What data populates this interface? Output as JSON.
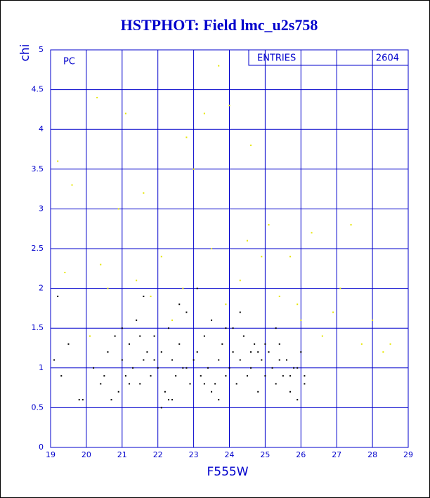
{
  "chart_data": {
    "type": "scatter",
    "title": "HSTPHOT: Field lmc_u2s758",
    "xlabel": "F555W",
    "ylabel": "chi",
    "panel_label": "PC",
    "stats": {
      "label": "ENTRIES",
      "value": "2604"
    },
    "xlim": [
      19,
      29
    ],
    "ylim": [
      0,
      5
    ],
    "xticks": [
      19,
      20,
      21,
      22,
      23,
      24,
      25,
      26,
      27,
      28,
      29
    ],
    "yticks": [
      0,
      0.5,
      1,
      1.5,
      2,
      2.5,
      3,
      3.5,
      4,
      4.5,
      5
    ],
    "grid": true,
    "grid_color": "#0000cc",
    "axis_color": "#0000cc",
    "series": [
      {
        "color": "#000000",
        "x": [
          19.1,
          19.3,
          19.5,
          19.8,
          20.2,
          20.4,
          20.6,
          20.8,
          20.9,
          21.0,
          21.1,
          21.2,
          21.3,
          21.4,
          21.5,
          21.6,
          21.7,
          21.8,
          21.9,
          22.0,
          22.1,
          22.2,
          22.3,
          22.4,
          22.5,
          22.6,
          22.7,
          22.8,
          22.9,
          23.0,
          23.1,
          23.2,
          23.3,
          23.4,
          23.5,
          23.6,
          23.7,
          23.8,
          23.9,
          24.0,
          24.1,
          24.2,
          24.3,
          24.4,
          24.5,
          24.6,
          24.7,
          24.8,
          24.9,
          25.0,
          25.1,
          25.2,
          25.3,
          25.4,
          25.5,
          25.6,
          25.7,
          25.8,
          25.9,
          26.0,
          20.7,
          21.2,
          21.6,
          22.1,
          22.6,
          23.1,
          23.5,
          23.9,
          24.3,
          24.8,
          25.3,
          25.7,
          26.1,
          21.5,
          22.4,
          23.3,
          24.1,
          25.0,
          25.9,
          20.5,
          21.9,
          22.8,
          23.7,
          24.6,
          25.4,
          19.2,
          19.9,
          21.0,
          22.3,
          26.1
        ],
        "values": [
          1.1,
          0.9,
          1.3,
          0.6,
          1.0,
          0.8,
          1.2,
          1.4,
          0.7,
          1.1,
          0.9,
          1.3,
          1.0,
          1.6,
          0.8,
          1.1,
          1.2,
          0.9,
          1.4,
          1.0,
          1.2,
          0.7,
          1.5,
          1.1,
          0.9,
          1.3,
          1.0,
          1.7,
          0.8,
          1.1,
          1.2,
          0.9,
          1.4,
          1.0,
          1.6,
          0.8,
          1.1,
          1.3,
          0.9,
          1.0,
          1.2,
          0.8,
          1.1,
          1.4,
          0.9,
          1.0,
          1.3,
          0.7,
          1.1,
          0.9,
          1.2,
          1.0,
          0.8,
          1.3,
          0.9,
          1.1,
          0.7,
          1.0,
          0.6,
          1.2,
          0.6,
          0.8,
          1.9,
          0.5,
          1.8,
          2.0,
          0.7,
          1.5,
          1.7,
          1.2,
          1.5,
          0.9,
          0.8,
          1.4,
          0.6,
          0.8,
          1.5,
          1.3,
          1.0,
          0.9,
          1.1,
          1.0,
          0.6,
          1.2,
          1.1,
          1.9,
          0.6,
          1.5,
          0.6,
          0.9
        ]
      },
      {
        "color": "#e6e600",
        "x": [
          19.2,
          19.4,
          19.6,
          20.1,
          20.3,
          20.6,
          20.9,
          21.1,
          21.4,
          21.6,
          21.8,
          22.1,
          22.4,
          22.7,
          23.0,
          23.3,
          23.5,
          23.7,
          23.9,
          24.0,
          24.3,
          24.6,
          24.9,
          25.1,
          25.4,
          25.7,
          26.0,
          26.3,
          26.6,
          26.9,
          27.1,
          27.4,
          27.7,
          28.0,
          28.3,
          28.5,
          20.4,
          22.8,
          24.5,
          25.9
        ],
        "values": [
          3.6,
          2.2,
          3.3,
          1.4,
          4.4,
          2.0,
          3.0,
          4.2,
          2.1,
          3.2,
          1.9,
          2.4,
          1.6,
          2.0,
          3.5,
          4.2,
          2.5,
          4.8,
          1.8,
          4.3,
          2.1,
          3.8,
          2.4,
          2.8,
          1.9,
          2.4,
          1.6,
          2.7,
          1.4,
          1.7,
          2.0,
          2.8,
          1.3,
          1.6,
          1.2,
          1.3,
          2.3,
          3.9,
          2.6,
          1.8
        ]
      }
    ]
  }
}
